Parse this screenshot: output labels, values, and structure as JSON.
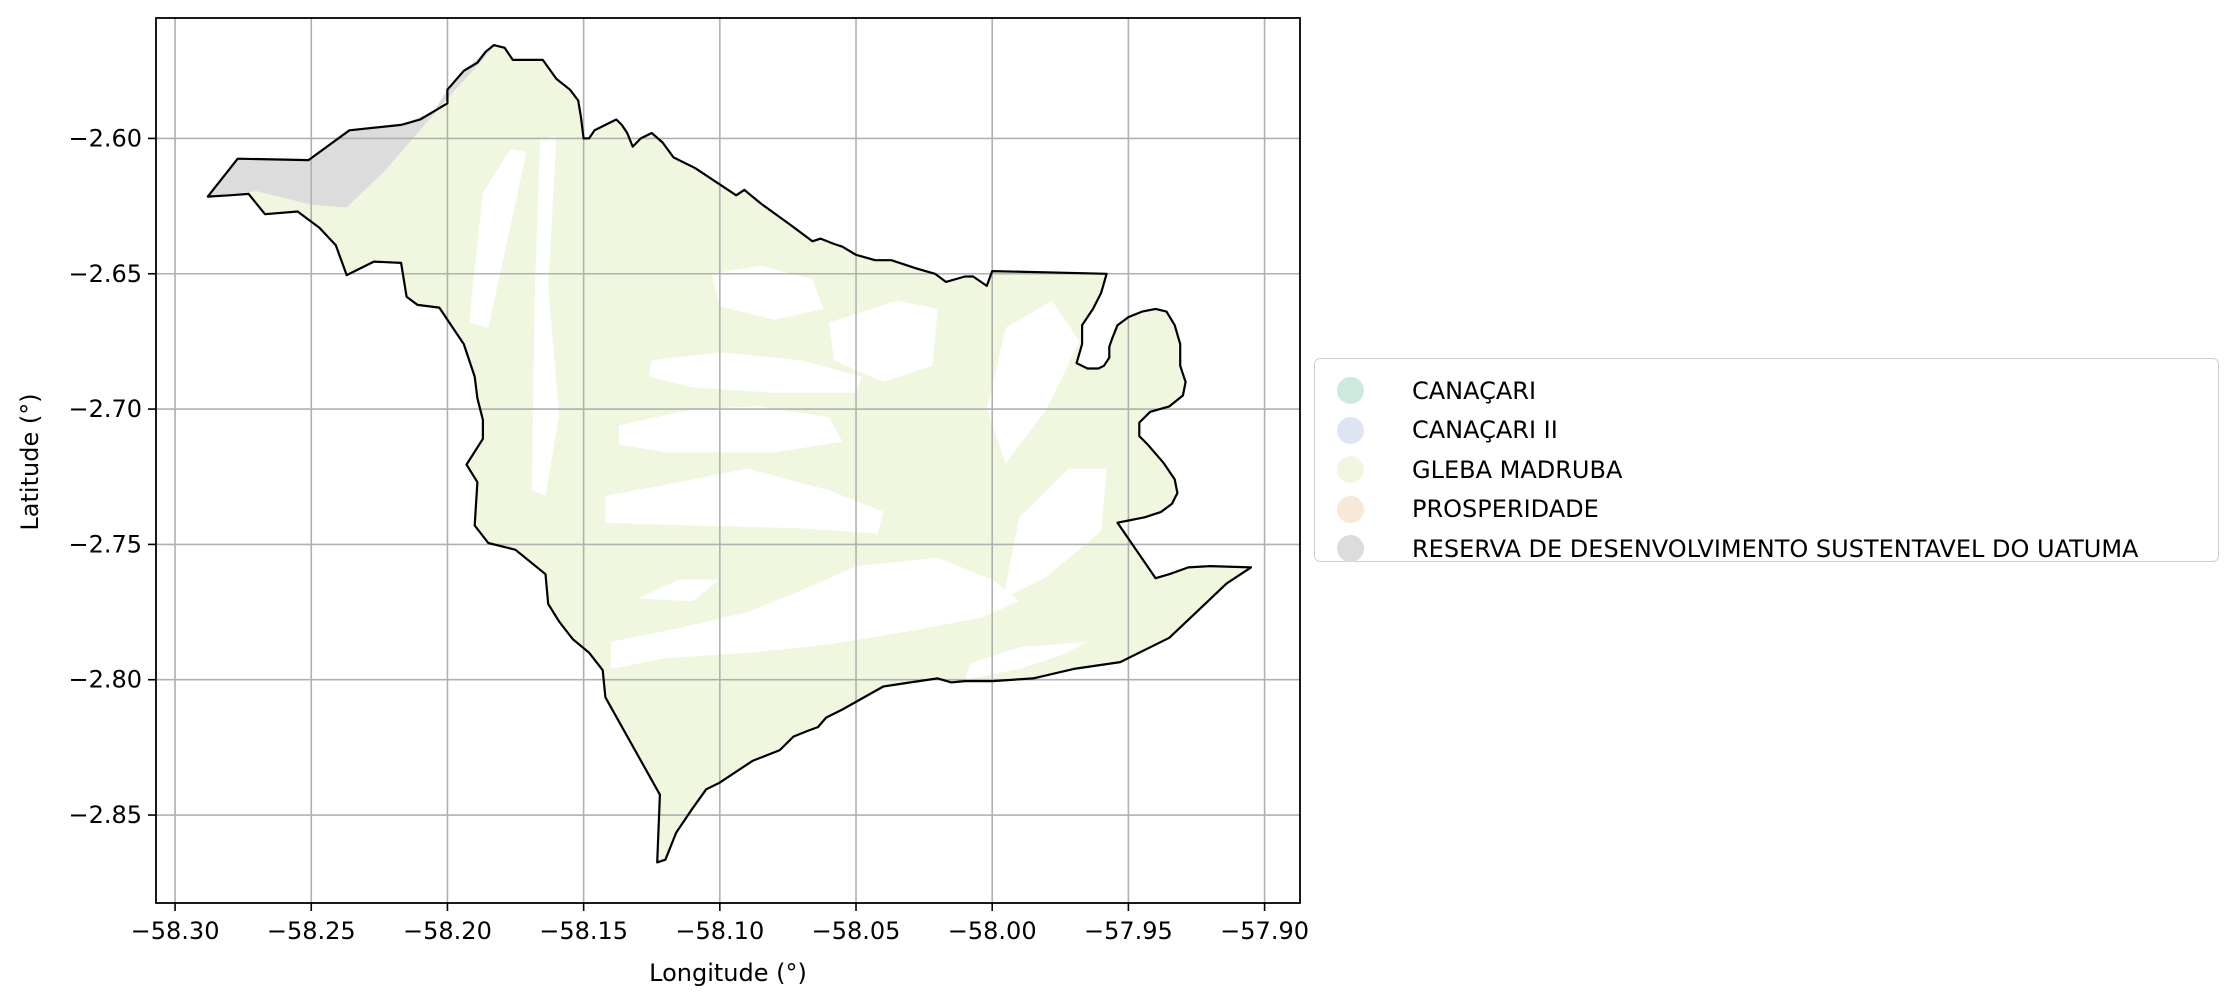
{
  "chart_data": {
    "type": "map",
    "xlabel": "Longitude (°)",
    "ylabel": "Latitude (°)",
    "xlim": [
      -58.307,
      -57.887
    ],
    "ylim": [
      -2.8825,
      -2.5555
    ],
    "xticks": [
      -58.3,
      -58.25,
      -58.2,
      -58.15,
      -58.1,
      -58.05,
      -58.0,
      -57.95,
      -57.9
    ],
    "xtick_labels": [
      "−58.30",
      "−58.25",
      "−58.20",
      "−58.15",
      "−58.10",
      "−58.05",
      "−58.00",
      "−57.95",
      "−57.90"
    ],
    "yticks": [
      -2.6,
      -2.65,
      -2.7,
      -2.75,
      -2.8,
      -2.85
    ],
    "ytick_labels": [
      "−2.60",
      "−2.65",
      "−2.70",
      "−2.75",
      "−2.80",
      "−2.85"
    ],
    "grid": true,
    "legend_position": "right",
    "legend": [
      {
        "label": "CANAÇARI",
        "color": "#cdeadf"
      },
      {
        "label": "CANAÇARI II",
        "color": "#dde5f2"
      },
      {
        "label": "GLEBA MADRUBA",
        "color": "#eff8df"
      },
      {
        "label": "PROSPERIDADE",
        "color": "#f7e8d9"
      },
      {
        "label": "RESERVA DE DESENVOLVIMENTO SUSTENTAVEL DO UATUMA",
        "color": "#dcdcdc"
      }
    ],
    "boundary": [
      [
        -58.288,
        -2.6215
      ],
      [
        -58.277,
        -2.6075
      ],
      [
        -58.251,
        -2.608
      ],
      [
        -58.236,
        -2.597
      ],
      [
        -58.217,
        -2.595
      ],
      [
        -58.21,
        -2.593
      ],
      [
        -58.205,
        -2.59
      ],
      [
        -58.2,
        -2.587
      ],
      [
        -58.2,
        -2.582
      ],
      [
        -58.194,
        -2.575
      ],
      [
        -58.189,
        -2.572
      ],
      [
        -58.186,
        -2.568
      ],
      [
        -58.183,
        -2.5655
      ],
      [
        -58.179,
        -2.5665
      ],
      [
        -58.176,
        -2.571
      ],
      [
        -58.165,
        -2.571
      ],
      [
        -58.16,
        -2.578
      ],
      [
        -58.155,
        -2.582
      ],
      [
        -58.152,
        -2.586
      ],
      [
        -58.151,
        -2.592
      ],
      [
        -58.15,
        -2.6
      ],
      [
        -58.148,
        -2.6
      ],
      [
        -58.146,
        -2.597
      ],
      [
        -58.142,
        -2.595
      ],
      [
        -58.138,
        -2.593
      ],
      [
        -58.136,
        -2.595
      ],
      [
        -58.134,
        -2.598
      ],
      [
        -58.132,
        -2.603
      ],
      [
        -58.129,
        -2.6
      ],
      [
        -58.125,
        -2.598
      ],
      [
        -58.121,
        -2.6015
      ],
      [
        -58.117,
        -2.607
      ],
      [
        -58.109,
        -2.611
      ],
      [
        -58.1,
        -2.617
      ],
      [
        -58.094,
        -2.621
      ],
      [
        -58.091,
        -2.619
      ],
      [
        -58.085,
        -2.624
      ],
      [
        -58.074,
        -2.632
      ],
      [
        -58.066,
        -2.638
      ],
      [
        -58.063,
        -2.637
      ],
      [
        -58.058,
        -2.639
      ],
      [
        -58.055,
        -2.64
      ],
      [
        -58.05,
        -2.643
      ],
      [
        -58.043,
        -2.645
      ],
      [
        -58.037,
        -2.645
      ],
      [
        -58.028,
        -2.648
      ],
      [
        -58.021,
        -2.65
      ],
      [
        -58.017,
        -2.653
      ],
      [
        -58.01,
        -2.651
      ],
      [
        -58.007,
        -2.651
      ],
      [
        -58.002,
        -2.6545
      ],
      [
        -58.0,
        -2.649
      ],
      [
        -57.958,
        -2.65
      ],
      [
        -57.96,
        -2.657
      ],
      [
        -57.963,
        -2.663
      ],
      [
        -57.967,
        -2.669
      ],
      [
        -57.967,
        -2.676
      ],
      [
        -57.969,
        -2.683
      ],
      [
        -57.965,
        -2.685
      ],
      [
        -57.961,
        -2.685
      ],
      [
        -57.959,
        -2.684
      ],
      [
        -57.957,
        -2.681
      ],
      [
        -57.957,
        -2.677
      ],
      [
        -57.956,
        -2.674
      ],
      [
        -57.954,
        -2.669
      ],
      [
        -57.95,
        -2.666
      ],
      [
        -57.945,
        -2.664
      ],
      [
        -57.94,
        -2.663
      ],
      [
        -57.936,
        -2.664
      ],
      [
        -57.933,
        -2.669
      ],
      [
        -57.931,
        -2.676
      ],
      [
        -57.931,
        -2.684
      ],
      [
        -57.929,
        -2.69
      ],
      [
        -57.93,
        -2.695
      ],
      [
        -57.935,
        -2.699
      ],
      [
        -57.942,
        -2.701
      ],
      [
        -57.946,
        -2.705
      ],
      [
        -57.946,
        -2.71
      ],
      [
        -57.943,
        -2.713
      ],
      [
        -57.937,
        -2.72
      ],
      [
        -57.933,
        -2.726
      ],
      [
        -57.932,
        -2.731
      ],
      [
        -57.934,
        -2.735
      ],
      [
        -57.938,
        -2.738
      ],
      [
        -57.944,
        -2.74
      ],
      [
        -57.949,
        -2.741
      ],
      [
        -57.954,
        -2.742
      ],
      [
        -57.94,
        -2.7625
      ],
      [
        -57.935,
        -2.761
      ],
      [
        -57.928,
        -2.7585
      ],
      [
        -57.92,
        -2.758
      ],
      [
        -57.905,
        -2.7585
      ],
      [
        -57.914,
        -2.7645
      ],
      [
        -57.925,
        -2.775
      ],
      [
        -57.935,
        -2.7845
      ],
      [
        -57.953,
        -2.7935
      ],
      [
        -57.97,
        -2.796
      ],
      [
        -57.985,
        -2.7995
      ],
      [
        -58.0,
        -2.8005
      ],
      [
        -58.01,
        -2.8005
      ],
      [
        -58.015,
        -2.801
      ],
      [
        -58.02,
        -2.7995
      ],
      [
        -58.03,
        -2.801
      ],
      [
        -58.04,
        -2.8025
      ],
      [
        -58.055,
        -2.811
      ],
      [
        -58.061,
        -2.814
      ],
      [
        -58.064,
        -2.8175
      ],
      [
        -58.068,
        -2.819
      ],
      [
        -58.073,
        -2.821
      ],
      [
        -58.078,
        -2.826
      ],
      [
        -58.088,
        -2.83
      ],
      [
        -58.094,
        -2.834
      ],
      [
        -58.1,
        -2.838
      ],
      [
        -58.105,
        -2.8405
      ],
      [
        -58.11,
        -2.8475
      ],
      [
        -58.116,
        -2.8565
      ],
      [
        -58.12,
        -2.8665
      ],
      [
        -58.123,
        -2.8675
      ],
      [
        -58.122,
        -2.8425
      ],
      [
        -58.142,
        -2.8065
      ],
      [
        -58.143,
        -2.7965
      ],
      [
        -58.148,
        -2.79
      ],
      [
        -58.154,
        -2.785
      ],
      [
        -58.159,
        -2.7785
      ],
      [
        -58.163,
        -2.772
      ],
      [
        -58.164,
        -2.761
      ],
      [
        -58.175,
        -2.752
      ],
      [
        -58.185,
        -2.7495
      ],
      [
        -58.19,
        -2.743
      ],
      [
        -58.189,
        -2.727
      ],
      [
        -58.193,
        -2.7205
      ],
      [
        -58.187,
        -2.711
      ],
      [
        -58.187,
        -2.704
      ],
      [
        -58.189,
        -2.696
      ],
      [
        -58.19,
        -2.688
      ],
      [
        -58.194,
        -2.676
      ],
      [
        -58.203,
        -2.6625
      ],
      [
        -58.211,
        -2.6615
      ],
      [
        -58.215,
        -2.6585
      ],
      [
        -58.217,
        -2.646
      ],
      [
        -58.227,
        -2.6455
      ],
      [
        -58.237,
        -2.6505
      ],
      [
        -58.241,
        -2.6395
      ],
      [
        -58.247,
        -2.633
      ],
      [
        -58.255,
        -2.627
      ],
      [
        -58.267,
        -2.628
      ],
      [
        -58.273,
        -2.6205
      ],
      [
        -58.28,
        -2.621
      ]
    ],
    "reserve_area": [
      [
        -58.288,
        -2.6215
      ],
      [
        -58.277,
        -2.6075
      ],
      [
        -58.251,
        -2.608
      ],
      [
        -58.236,
        -2.597
      ],
      [
        -58.217,
        -2.595
      ],
      [
        -58.205,
        -2.59
      ],
      [
        -58.2,
        -2.582
      ],
      [
        -58.194,
        -2.575
      ],
      [
        -58.186,
        -2.568
      ],
      [
        -58.183,
        -2.566
      ],
      [
        -58.188,
        -2.572
      ],
      [
        -58.198,
        -2.583
      ],
      [
        -58.211,
        -2.598
      ],
      [
        -58.223,
        -2.612
      ],
      [
        -58.237,
        -2.6255
      ],
      [
        -58.25,
        -2.6245
      ],
      [
        -58.27,
        -2.6195
      ]
    ],
    "gleba_holes": [
      [
        [
          -58.192,
          -2.668
        ],
        [
          -58.187,
          -2.62
        ],
        [
          -58.177,
          -2.604
        ],
        [
          -58.171,
          -2.605
        ],
        [
          -58.185,
          -2.67
        ]
      ],
      [
        [
          -58.169,
          -2.73
        ],
        [
          -58.168,
          -2.66
        ],
        [
          -58.166,
          -2.6
        ],
        [
          -58.16,
          -2.599
        ],
        [
          -58.163,
          -2.655
        ],
        [
          -58.159,
          -2.702
        ],
        [
          -58.164,
          -2.732
        ]
      ],
      [
        [
          -58.142,
          -2.732
        ],
        [
          -58.12,
          -2.728
        ],
        [
          -58.09,
          -2.722
        ],
        [
          -58.06,
          -2.73
        ],
        [
          -58.04,
          -2.738
        ],
        [
          -58.042,
          -2.746
        ],
        [
          -58.07,
          -2.744
        ],
        [
          -58.11,
          -2.743
        ],
        [
          -58.142,
          -2.742
        ]
      ],
      [
        [
          -58.103,
          -2.65
        ],
        [
          -58.085,
          -2.647
        ],
        [
          -58.066,
          -2.652
        ],
        [
          -58.062,
          -2.663
        ],
        [
          -58.08,
          -2.667
        ],
        [
          -58.1,
          -2.662
        ]
      ],
      [
        [
          -58.137,
          -2.706
        ],
        [
          -58.11,
          -2.7
        ],
        [
          -58.085,
          -2.699
        ],
        [
          -58.06,
          -2.703
        ],
        [
          -58.055,
          -2.712
        ],
        [
          -58.08,
          -2.716
        ],
        [
          -58.12,
          -2.716
        ],
        [
          -58.137,
          -2.713
        ]
      ],
      [
        [
          -58.125,
          -2.682
        ],
        [
          -58.1,
          -2.679
        ],
        [
          -58.07,
          -2.682
        ],
        [
          -58.048,
          -2.688
        ],
        [
          -58.05,
          -2.694
        ],
        [
          -58.08,
          -2.694
        ],
        [
          -58.11,
          -2.692
        ],
        [
          -58.126,
          -2.688
        ]
      ],
      [
        [
          -58.06,
          -2.668
        ],
        [
          -58.035,
          -2.66
        ],
        [
          -58.02,
          -2.663
        ],
        [
          -58.022,
          -2.684
        ],
        [
          -58.04,
          -2.69
        ],
        [
          -58.058,
          -2.682
        ]
      ],
      [
        [
          -57.995,
          -2.67
        ],
        [
          -57.978,
          -2.66
        ],
        [
          -57.968,
          -2.675
        ],
        [
          -57.98,
          -2.7
        ],
        [
          -57.995,
          -2.72
        ],
        [
          -58.002,
          -2.7
        ]
      ],
      [
        [
          -57.99,
          -2.74
        ],
        [
          -57.972,
          -2.722
        ],
        [
          -57.958,
          -2.722
        ],
        [
          -57.96,
          -2.745
        ],
        [
          -57.98,
          -2.762
        ],
        [
          -57.996,
          -2.77
        ]
      ],
      [
        [
          -58.14,
          -2.796
        ],
        [
          -58.12,
          -2.792
        ],
        [
          -58.09,
          -2.79
        ],
        [
          -58.06,
          -2.787
        ],
        [
          -58.03,
          -2.782
        ],
        [
          -58.004,
          -2.777
        ],
        [
          -57.99,
          -2.771
        ],
        [
          -58.0,
          -2.763
        ],
        [
          -58.02,
          -2.755
        ],
        [
          -58.05,
          -2.758
        ],
        [
          -58.07,
          -2.767
        ],
        [
          -58.09,
          -2.775
        ],
        [
          -58.115,
          -2.781
        ],
        [
          -58.14,
          -2.786
        ]
      ],
      [
        [
          -58.13,
          -2.77
        ],
        [
          -58.115,
          -2.763
        ],
        [
          -58.1,
          -2.763
        ],
        [
          -58.11,
          -2.771
        ]
      ],
      [
        [
          -58.01,
          -2.8
        ],
        [
          -57.99,
          -2.796
        ],
        [
          -57.975,
          -2.791
        ],
        [
          -57.965,
          -2.786
        ],
        [
          -57.99,
          -2.788
        ],
        [
          -58.008,
          -2.794
        ]
      ]
    ]
  }
}
